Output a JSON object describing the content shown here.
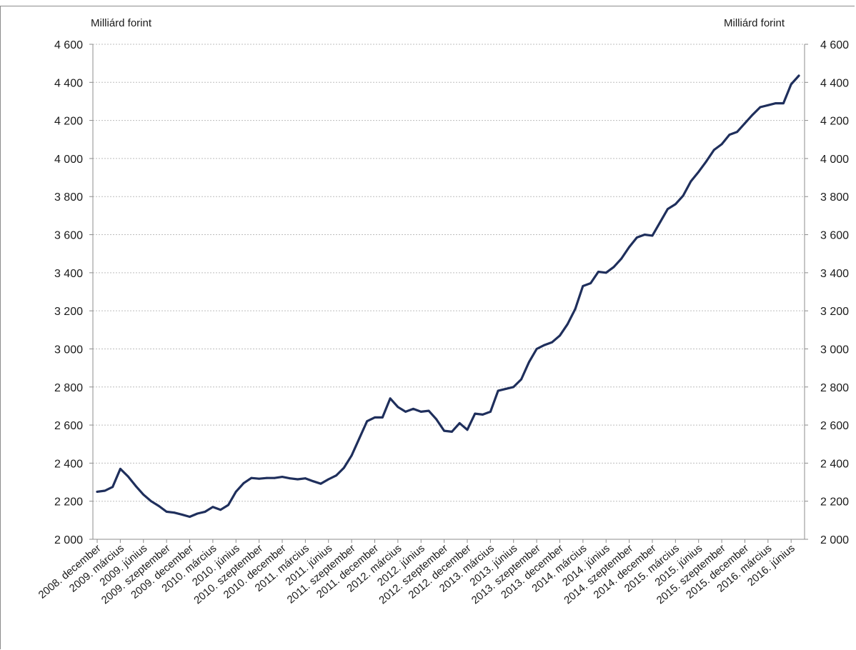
{
  "chart_data": {
    "type": "line",
    "units": {
      "left": "Milliárd forint",
      "right": "Milliárd forint"
    },
    "ylim": [
      2000,
      4600
    ],
    "y_ticks": [
      2000,
      2200,
      2400,
      2600,
      2800,
      3000,
      3200,
      3400,
      3600,
      3800,
      4000,
      4200,
      4400,
      4600
    ],
    "y_tick_labels": [
      "2 000",
      "2 200",
      "2 400",
      "2 600",
      "2 800",
      "3 000",
      "3 200",
      "3 400",
      "3 600",
      "3 800",
      "4 000",
      "4 200",
      "4 400",
      "4 600"
    ],
    "grid": "horizontal dotted",
    "x_tick_labels": [
      "2008. december",
      "2009. március",
      "2009. június",
      "2009. szeptember",
      "2009. december",
      "2010. március",
      "2010. június",
      "2010. szeptember",
      "2010. december",
      "2011. március",
      "2011. június",
      "2011. szeptember",
      "2011. december",
      "2012. március",
      "2012. június",
      "2012. szeptember",
      "2012. december",
      "2013. március",
      "2013. június",
      "2013. szeptember",
      "2013. december",
      "2014. március",
      "2014. június",
      "2014. szeptember",
      "2014. december",
      "2015. március",
      "2015. június",
      "2015. szeptember",
      "2015. december",
      "2016. március",
      "2016. június"
    ],
    "x_start": "2008-12",
    "series": [
      {
        "color": "#1f2f5c",
        "values": [
          2250,
          2255,
          2275,
          2370,
          2330,
          2280,
          2235,
          2200,
          2175,
          2145,
          2140,
          2130,
          2118,
          2135,
          2145,
          2170,
          2155,
          2180,
          2250,
          2295,
          2322,
          2318,
          2322,
          2322,
          2328,
          2320,
          2315,
          2320,
          2305,
          2292,
          2315,
          2335,
          2375,
          2440,
          2530,
          2620,
          2640,
          2640,
          2740,
          2695,
          2670,
          2685,
          2670,
          2675,
          2630,
          2570,
          2565,
          2610,
          2575,
          2660,
          2655,
          2670,
          2780,
          2790,
          2800,
          2840,
          2930,
          3000,
          3020,
          3035,
          3070,
          3130,
          3210,
          3330,
          3345,
          3405,
          3400,
          3430,
          3475,
          3535,
          3585,
          3600,
          3595,
          3665,
          3735,
          3760,
          3805,
          3880,
          3930,
          3985,
          4045,
          4075,
          4125,
          4140,
          4185,
          4230,
          4270,
          4280,
          4290,
          4290,
          4390,
          4435
        ]
      }
    ]
  }
}
